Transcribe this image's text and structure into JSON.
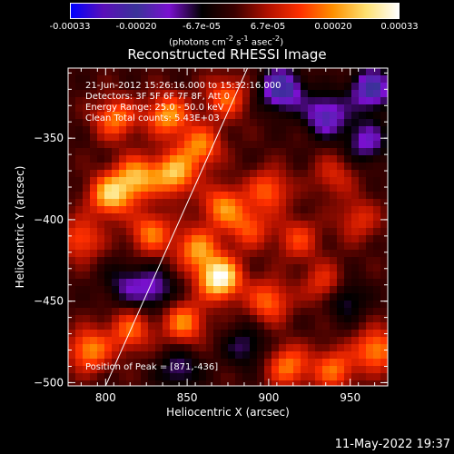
{
  "colors": {
    "colormap_stops": [
      "#0000ff",
      "#5a0fb8",
      "#3a3399",
      "#7a10d0",
      "#000000",
      "#3a0000",
      "#b01000",
      "#ff3000",
      "#ff9000",
      "#ffe070",
      "#ffffff"
    ]
  },
  "colorbar": {
    "ticks": [
      "-0.00033",
      "-0.00020",
      "-6.7e-05",
      "6.7e-05",
      "0.00020",
      "0.00033"
    ],
    "unit_label": "(photons cm",
    "unit_sup1": "-2",
    "unit_mid": " s",
    "unit_sup2": "-1",
    "unit_end": " asec",
    "unit_sup3": "-2",
    "unit_close": ")"
  },
  "annotations": {
    "time_range": "21-Jun-2012 15:26:16.000 to 15:32:16.000",
    "detectors": "Detectors: 3F 5F 6F 7F 8F, Att 0",
    "energy": "Energy Range: 25.0 - 50.0 keV",
    "clean": "Clean    Total counts: 5.43E+03",
    "peak": "Position of Peak = [871,-436]"
  },
  "date_stamp": "11-May-2022 19:37",
  "chart_data": {
    "type": "heatmap",
    "title": "Reconstructed RHESSI Image",
    "xlabel": "Heliocentric X (arcsec)",
    "ylabel": "Heliocentric Y (arcsec)",
    "xlim": [
      777,
      973
    ],
    "ylim": [
      -502,
      -307
    ],
    "xticks": [
      800,
      850,
      900,
      950
    ],
    "yticks": [
      -350,
      -400,
      -450,
      -500
    ],
    "value_range": [
      -0.00033,
      0.00033
    ],
    "peak_position": [
      871,
      -436
    ],
    "limb_line": {
      "x": [
        800,
        887
      ],
      "y": [
        -502,
        -307
      ]
    },
    "hotspots": [
      {
        "x": 870,
        "y": -436,
        "value": 0.00033
      },
      {
        "x": 803,
        "y": -385,
        "value": 0.00025
      },
      {
        "x": 819,
        "y": -374,
        "value": 0.00022
      },
      {
        "x": 842,
        "y": -372,
        "value": 0.00024
      },
      {
        "x": 838,
        "y": -336,
        "value": 0.00021
      },
      {
        "x": 806,
        "y": -338,
        "value": 0.00018
      },
      {
        "x": 858,
        "y": -355,
        "value": 0.00019
      },
      {
        "x": 874,
        "y": -325,
        "value": 0.00016
      },
      {
        "x": 872,
        "y": -392,
        "value": 0.00019
      },
      {
        "x": 856,
        "y": -418,
        "value": 0.0002
      },
      {
        "x": 828,
        "y": -408,
        "value": 0.00018
      },
      {
        "x": 785,
        "y": -412,
        "value": 0.00015
      },
      {
        "x": 790,
        "y": -480,
        "value": 0.0002
      },
      {
        "x": 815,
        "y": -468,
        "value": 0.00016
      },
      {
        "x": 848,
        "y": -463,
        "value": 0.00019
      },
      {
        "x": 888,
        "y": -405,
        "value": 0.00014
      },
      {
        "x": 900,
        "y": -382,
        "value": 0.00016
      },
      {
        "x": 918,
        "y": -412,
        "value": 0.00013
      },
      {
        "x": 900,
        "y": -450,
        "value": 0.00017
      },
      {
        "x": 935,
        "y": -440,
        "value": 0.00014
      },
      {
        "x": 912,
        "y": -490,
        "value": 0.00018
      },
      {
        "x": 940,
        "y": -492,
        "value": 0.00017
      },
      {
        "x": 966,
        "y": -480,
        "value": 0.0002
      },
      {
        "x": 955,
        "y": -400,
        "value": 0.00011
      },
      {
        "x": 940,
        "y": -373,
        "value": 0.0001
      }
    ],
    "coldspots": [
      {
        "x": 908,
        "y": -320,
        "value": -0.00022
      },
      {
        "x": 935,
        "y": -336,
        "value": -0.00018
      },
      {
        "x": 963,
        "y": -320,
        "value": -0.0002
      },
      {
        "x": 960,
        "y": -352,
        "value": -0.00014
      },
      {
        "x": 946,
        "y": -448,
        "value": -0.00012
      },
      {
        "x": 830,
        "y": -443,
        "value": -0.00013
      },
      {
        "x": 886,
        "y": -478,
        "value": -0.0001
      },
      {
        "x": 845,
        "y": -492,
        "value": -0.00011
      },
      {
        "x": 812,
        "y": -440,
        "value": -0.0001
      }
    ]
  }
}
